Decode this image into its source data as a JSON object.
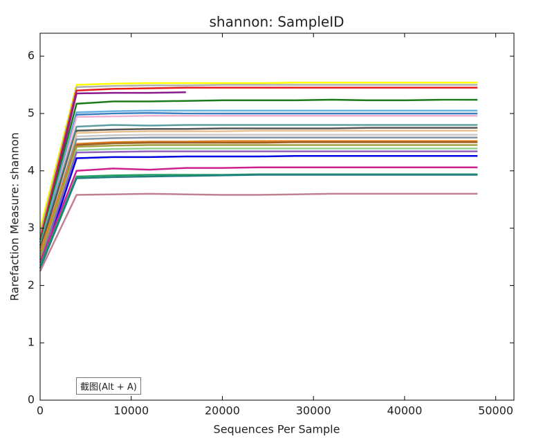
{
  "chart_data": {
    "type": "line",
    "title": "shannon: SampleID",
    "xlabel": "Sequences Per Sample",
    "ylabel": "Rarefaction Measure: shannon",
    "annotation": "截图(Alt + A)",
    "x": [
      10,
      4000,
      8000,
      12000,
      16000,
      20000,
      24000,
      28000,
      32000,
      36000,
      40000,
      44000,
      48000
    ],
    "xlim": [
      0,
      52000
    ],
    "xticks": [
      0,
      10000,
      20000,
      30000,
      40000,
      50000
    ],
    "ylim": [
      0,
      6.4
    ],
    "yticks": [
      0,
      1,
      2,
      3,
      4,
      5,
      6
    ],
    "grid": false,
    "series": [
      {
        "color": "#ffff00",
        "values": [
          3.0,
          5.5,
          5.52,
          5.53,
          5.53,
          5.53,
          5.53,
          5.54,
          5.54,
          5.54,
          5.54,
          5.54,
          5.54
        ]
      },
      {
        "color": "#b0b0b0",
        "values": [
          2.9,
          5.46,
          5.48,
          5.49,
          5.49,
          5.5,
          5.5,
          5.5,
          5.5,
          5.5,
          5.5,
          5.5,
          5.5
        ]
      },
      {
        "color": "#e41a1c",
        "values": [
          2.8,
          5.4,
          5.43,
          5.44,
          5.45,
          5.45,
          5.45,
          5.45,
          5.45,
          5.45,
          5.45,
          5.45,
          5.45
        ]
      },
      {
        "color": "#8b1a8b",
        "values": [
          2.7,
          5.35,
          5.36,
          5.36,
          5.37,
          null,
          null,
          null,
          null,
          null,
          null,
          null,
          null
        ]
      },
      {
        "color": "#1a7a1a",
        "values": [
          2.75,
          5.17,
          5.21,
          5.21,
          5.22,
          5.23,
          5.23,
          5.23,
          5.24,
          5.23,
          5.23,
          5.24,
          5.24
        ]
      },
      {
        "color": "#6ab0e0",
        "values": [
          2.7,
          5.02,
          5.04,
          5.05,
          5.05,
          5.05,
          5.05,
          5.05,
          5.05,
          5.05,
          5.05,
          5.05,
          5.05
        ]
      },
      {
        "color": "#3a7fc0",
        "values": [
          2.6,
          4.98,
          5.0,
          5.01,
          5.0,
          5.0,
          5.0,
          5.0,
          5.0,
          5.0,
          5.0,
          5.0,
          5.0
        ]
      },
      {
        "color": "#f0b0d0",
        "values": [
          2.6,
          4.94,
          4.95,
          4.96,
          4.96,
          4.96,
          4.96,
          4.96,
          4.96,
          4.96,
          4.96,
          4.96,
          4.96
        ]
      },
      {
        "color": "#5f9e9e",
        "values": [
          2.7,
          4.77,
          4.8,
          4.79,
          4.8,
          4.8,
          4.8,
          4.8,
          4.8,
          4.8,
          4.8,
          4.8,
          4.8
        ]
      },
      {
        "color": "#555555",
        "values": [
          2.65,
          4.7,
          4.72,
          4.73,
          4.73,
          4.74,
          4.74,
          4.74,
          4.74,
          4.75,
          4.75,
          4.75,
          4.75
        ]
      },
      {
        "color": "#e8c090",
        "values": [
          2.5,
          4.66,
          4.68,
          4.69,
          4.69,
          4.69,
          4.7,
          4.7,
          4.7,
          4.7,
          4.7,
          4.7,
          4.7
        ]
      },
      {
        "color": "#c8c8c8",
        "values": [
          2.5,
          4.6,
          4.62,
          4.63,
          4.63,
          4.63,
          4.63,
          4.63,
          4.63,
          4.63,
          4.63,
          4.63,
          4.63
        ]
      },
      {
        "color": "#8090a0",
        "values": [
          2.55,
          4.55,
          4.57,
          4.58,
          4.58,
          4.58,
          4.58,
          4.58,
          4.58,
          4.58,
          4.58,
          4.58,
          4.58
        ]
      },
      {
        "color": "#e08020",
        "values": [
          2.6,
          4.47,
          4.5,
          4.51,
          4.51,
          4.52,
          4.52,
          4.52,
          4.52,
          4.52,
          4.52,
          4.52,
          4.52
        ]
      },
      {
        "color": "#a06020",
        "values": [
          2.45,
          4.45,
          4.48,
          4.49,
          4.49,
          4.49,
          4.49,
          4.5,
          4.5,
          4.5,
          4.5,
          4.5,
          4.5
        ]
      },
      {
        "color": "#a0a040",
        "values": [
          2.5,
          4.42,
          4.44,
          4.45,
          4.45,
          4.45,
          4.45,
          4.45,
          4.45,
          4.45,
          4.45,
          4.45,
          4.45
        ]
      },
      {
        "color": "#90d090",
        "values": [
          2.4,
          4.36,
          4.38,
          4.39,
          4.39,
          4.39,
          4.39,
          4.39,
          4.39,
          4.39,
          4.39,
          4.39,
          4.39
        ]
      },
      {
        "color": "#9060c0",
        "values": [
          2.4,
          4.32,
          4.33,
          4.34,
          4.34,
          4.34,
          4.34,
          4.34,
          4.34,
          4.34,
          4.34,
          4.34,
          4.34
        ]
      },
      {
        "color": "#0000e0",
        "values": [
          2.3,
          4.22,
          4.24,
          4.24,
          4.25,
          4.25,
          4.25,
          4.26,
          4.26,
          4.26,
          4.26,
          4.26,
          4.26
        ]
      },
      {
        "color": "#d02090",
        "values": [
          2.4,
          4.0,
          4.04,
          4.02,
          4.05,
          4.05,
          4.06,
          4.06,
          4.06,
          4.06,
          4.06,
          4.06,
          4.06
        ]
      },
      {
        "color": "#20a060",
        "values": [
          2.35,
          3.9,
          3.92,
          3.93,
          3.93,
          3.93,
          3.94,
          3.94,
          3.94,
          3.94,
          3.94,
          3.94,
          3.94
        ]
      },
      {
        "color": "#208080",
        "values": [
          2.3,
          3.87,
          3.89,
          3.9,
          3.91,
          3.92,
          3.93,
          3.93,
          3.93,
          3.93,
          3.93,
          3.93,
          3.93
        ]
      },
      {
        "color": "#c08090",
        "values": [
          2.25,
          3.58,
          3.59,
          3.6,
          3.59,
          3.58,
          3.58,
          3.59,
          3.6,
          3.6,
          3.6,
          3.6,
          3.6
        ]
      }
    ]
  }
}
